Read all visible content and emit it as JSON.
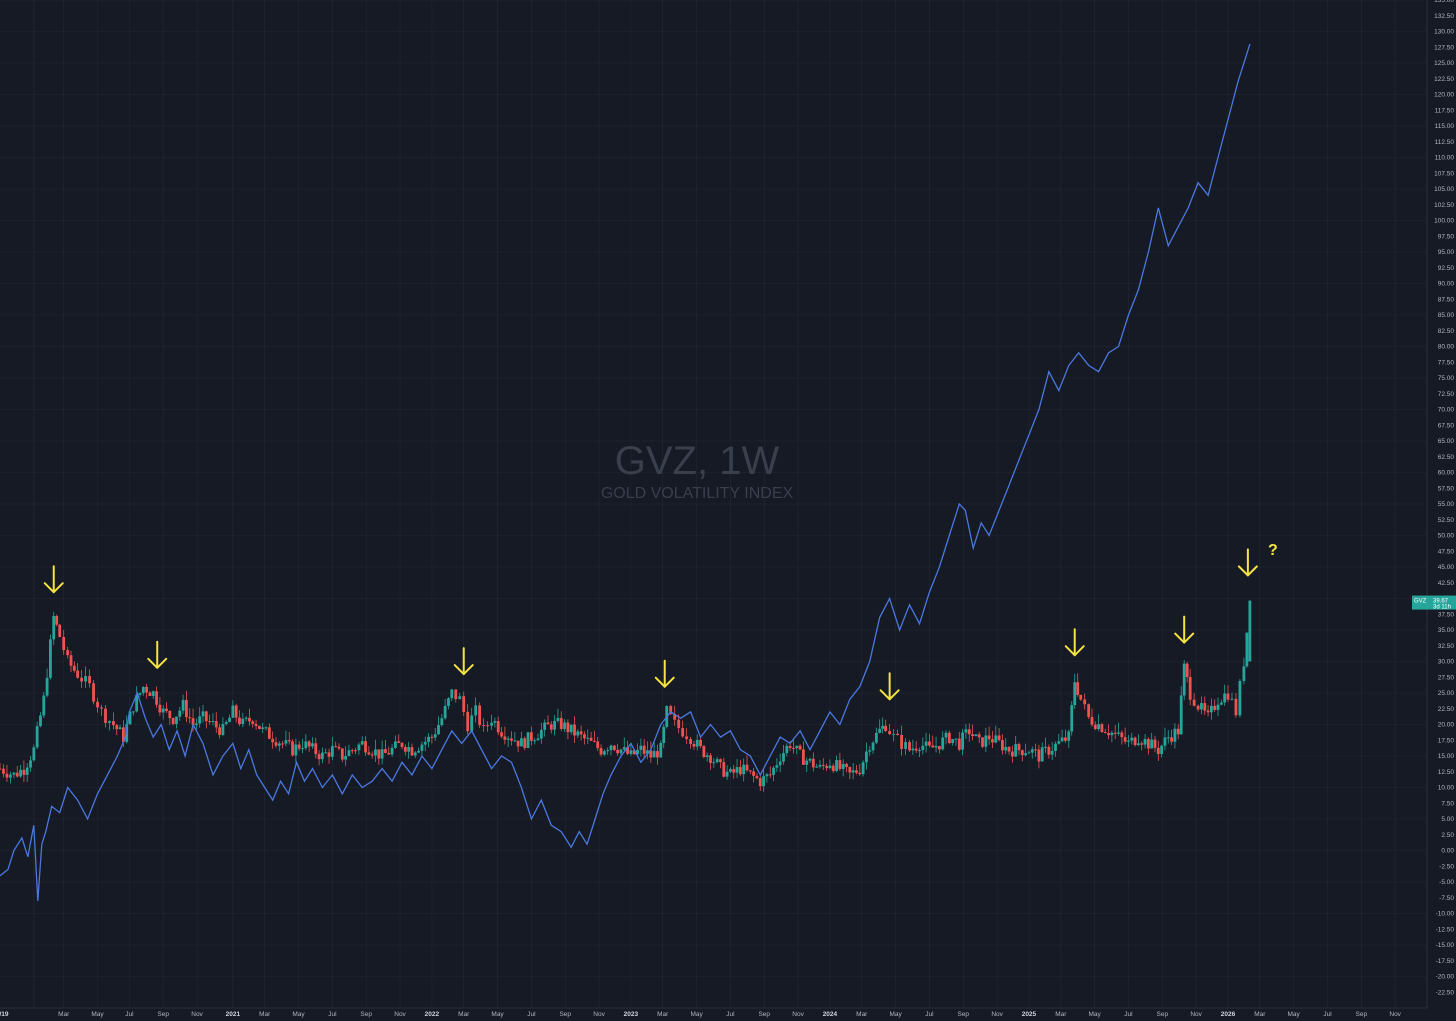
{
  "watermark": {
    "title": "GVZ, 1W",
    "subtitle": "GOLD VOLATILITY INDEX"
  },
  "price_tag": {
    "symbol": "GVZ",
    "value": "39.67",
    "countdown": "3d 11h"
  },
  "question_mark": "?",
  "colors": {
    "background": "#161a25",
    "grid": "#232734",
    "up": "#26a69a",
    "down": "#ef5350",
    "line": "#4a78e0",
    "arrow": "#f5e342"
  },
  "chart_data": {
    "type": "candlestick",
    "ylim": [
      -25,
      135
    ],
    "y_ticks": [
      "135.00",
      "132.50",
      "130.00",
      "127.50",
      "125.00",
      "122.50",
      "120.00",
      "117.50",
      "115.00",
      "112.50",
      "110.00",
      "107.50",
      "105.00",
      "102.50",
      "100.00",
      "97.50",
      "95.00",
      "92.50",
      "90.00",
      "87.50",
      "85.00",
      "82.50",
      "80.00",
      "77.50",
      "75.00",
      "72.50",
      "70.00",
      "67.50",
      "65.00",
      "62.50",
      "60.00",
      "57.50",
      "55.00",
      "52.50",
      "50.00",
      "47.50",
      "45.00",
      "42.50",
      "40.00",
      "37.50",
      "35.00",
      "32.50",
      "30.00",
      "27.50",
      "25.00",
      "22.50",
      "20.00",
      "17.50",
      "15.00",
      "12.50",
      "10.00",
      "7.50",
      "5.00",
      "2.50",
      "0.00",
      "-2.50",
      "-5.00",
      "-7.50",
      "-10.00",
      "-12.50",
      "-15.00",
      "-17.50",
      "-20.00",
      "-22.50"
    ],
    "x_ticks": [
      {
        "label": "/19",
        "pos": 0.0,
        "year": true
      },
      {
        "label": "Mar",
        "pos": 0.15
      },
      {
        "label": "May",
        "pos": 0.32
      },
      {
        "label": "Jul",
        "pos": 0.48
      },
      {
        "label": "Sep",
        "pos": 0.65
      },
      {
        "label": "Nov",
        "pos": 0.82
      },
      {
        "label": "2021",
        "pos": 1.0,
        "year": true
      },
      {
        "label": "Mar",
        "pos": 1.16
      },
      {
        "label": "May",
        "pos": 1.33
      },
      {
        "label": "Jul",
        "pos": 1.5
      },
      {
        "label": "Sep",
        "pos": 1.67
      },
      {
        "label": "Nov",
        "pos": 1.84
      },
      {
        "label": "2022",
        "pos": 2.0,
        "year": true
      },
      {
        "label": "Mar",
        "pos": 2.16
      },
      {
        "label": "May",
        "pos": 2.33
      },
      {
        "label": "Jul",
        "pos": 2.5
      },
      {
        "label": "Sep",
        "pos": 2.67
      },
      {
        "label": "Nov",
        "pos": 2.84
      },
      {
        "label": "2023",
        "pos": 3.0,
        "year": true
      },
      {
        "label": "Mar",
        "pos": 3.16
      },
      {
        "label": "May",
        "pos": 3.33
      },
      {
        "label": "Jul",
        "pos": 3.5
      },
      {
        "label": "Sep",
        "pos": 3.67
      },
      {
        "label": "Nov",
        "pos": 3.84
      },
      {
        "label": "2024",
        "pos": 4.0,
        "year": true
      },
      {
        "label": "Mar",
        "pos": 4.16
      },
      {
        "label": "May",
        "pos": 4.33
      },
      {
        "label": "Jul",
        "pos": 4.5
      },
      {
        "label": "Sep",
        "pos": 4.67
      },
      {
        "label": "Nov",
        "pos": 4.84
      },
      {
        "label": "2025",
        "pos": 5.0,
        "year": true
      },
      {
        "label": "Mar",
        "pos": 5.16
      },
      {
        "label": "May",
        "pos": 5.33
      },
      {
        "label": "Jul",
        "pos": 5.5
      },
      {
        "label": "Sep",
        "pos": 5.67
      },
      {
        "label": "Nov",
        "pos": 5.84
      },
      {
        "label": "2026",
        "pos": 6.0,
        "year": true
      },
      {
        "label": "Mar",
        "pos": 6.16
      },
      {
        "label": "May",
        "pos": 6.33
      },
      {
        "label": "Jul",
        "pos": 6.5
      },
      {
        "label": "Sep",
        "pos": 6.67
      },
      {
        "label": "Nov",
        "pos": 6.84
      }
    ],
    "x_range": [
      -0.17,
      7.0
    ],
    "gvz_closes": [
      {
        "t": -0.17,
        "v": 13
      },
      {
        "t": -0.1,
        "v": 12
      },
      {
        "t": -0.05,
        "v": 13
      },
      {
        "t": 0.0,
        "v": 16
      },
      {
        "t": 0.05,
        "v": 24
      },
      {
        "t": 0.1,
        "v": 37
      },
      {
        "t": 0.13,
        "v": 34
      },
      {
        "t": 0.17,
        "v": 30
      },
      {
        "t": 0.22,
        "v": 28
      },
      {
        "t": 0.28,
        "v": 26
      },
      {
        "t": 0.34,
        "v": 22
      },
      {
        "t": 0.4,
        "v": 20
      },
      {
        "t": 0.45,
        "v": 18
      },
      {
        "t": 0.5,
        "v": 23
      },
      {
        "t": 0.55,
        "v": 26
      },
      {
        "t": 0.6,
        "v": 25
      },
      {
        "t": 0.65,
        "v": 22
      },
      {
        "t": 0.7,
        "v": 21
      },
      {
        "t": 0.75,
        "v": 23
      },
      {
        "t": 0.8,
        "v": 20
      },
      {
        "t": 0.85,
        "v": 21
      },
      {
        "t": 0.9,
        "v": 20
      },
      {
        "t": 0.95,
        "v": 19
      },
      {
        "t": 1.0,
        "v": 22
      },
      {
        "t": 1.05,
        "v": 20
      },
      {
        "t": 1.1,
        "v": 21
      },
      {
        "t": 1.15,
        "v": 19
      },
      {
        "t": 1.2,
        "v": 18
      },
      {
        "t": 1.25,
        "v": 17
      },
      {
        "t": 1.3,
        "v": 16
      },
      {
        "t": 1.35,
        "v": 17
      },
      {
        "t": 1.4,
        "v": 16
      },
      {
        "t": 1.45,
        "v": 15
      },
      {
        "t": 1.5,
        "v": 16
      },
      {
        "t": 1.55,
        "v": 15
      },
      {
        "t": 1.6,
        "v": 16
      },
      {
        "t": 1.65,
        "v": 17
      },
      {
        "t": 1.7,
        "v": 16
      },
      {
        "t": 1.75,
        "v": 15
      },
      {
        "t": 1.8,
        "v": 16
      },
      {
        "t": 1.85,
        "v": 17
      },
      {
        "t": 1.9,
        "v": 16
      },
      {
        "t": 1.95,
        "v": 17
      },
      {
        "t": 2.0,
        "v": 18
      },
      {
        "t": 2.05,
        "v": 21
      },
      {
        "t": 2.1,
        "v": 25
      },
      {
        "t": 2.14,
        "v": 24
      },
      {
        "t": 2.18,
        "v": 20
      },
      {
        "t": 2.22,
        "v": 22
      },
      {
        "t": 2.26,
        "v": 19
      },
      {
        "t": 2.3,
        "v": 21
      },
      {
        "t": 2.35,
        "v": 19
      },
      {
        "t": 2.4,
        "v": 18
      },
      {
        "t": 2.45,
        "v": 17
      },
      {
        "t": 2.5,
        "v": 18
      },
      {
        "t": 2.55,
        "v": 19
      },
      {
        "t": 2.6,
        "v": 20
      },
      {
        "t": 2.65,
        "v": 20
      },
      {
        "t": 2.7,
        "v": 19
      },
      {
        "t": 2.75,
        "v": 18
      },
      {
        "t": 2.8,
        "v": 17
      },
      {
        "t": 2.85,
        "v": 16
      },
      {
        "t": 2.9,
        "v": 17
      },
      {
        "t": 2.95,
        "v": 16
      },
      {
        "t": 3.0,
        "v": 15
      },
      {
        "t": 3.05,
        "v": 16
      },
      {
        "t": 3.1,
        "v": 15
      },
      {
        "t": 3.15,
        "v": 16
      },
      {
        "t": 3.18,
        "v": 22
      },
      {
        "t": 3.22,
        "v": 20
      },
      {
        "t": 3.26,
        "v": 19
      },
      {
        "t": 3.3,
        "v": 18
      },
      {
        "t": 3.35,
        "v": 16
      },
      {
        "t": 3.4,
        "v": 15
      },
      {
        "t": 3.45,
        "v": 13
      },
      {
        "t": 3.5,
        "v": 12
      },
      {
        "t": 3.55,
        "v": 13
      },
      {
        "t": 3.6,
        "v": 12
      },
      {
        "t": 3.65,
        "v": 11
      },
      {
        "t": 3.7,
        "v": 12
      },
      {
        "t": 3.75,
        "v": 15
      },
      {
        "t": 3.8,
        "v": 17
      },
      {
        "t": 3.85,
        "v": 15
      },
      {
        "t": 3.9,
        "v": 14
      },
      {
        "t": 3.95,
        "v": 13
      },
      {
        "t": 4.0,
        "v": 14
      },
      {
        "t": 4.05,
        "v": 13
      },
      {
        "t": 4.1,
        "v": 12
      },
      {
        "t": 4.15,
        "v": 13
      },
      {
        "t": 4.2,
        "v": 17
      },
      {
        "t": 4.25,
        "v": 19
      },
      {
        "t": 4.28,
        "v": 20
      },
      {
        "t": 4.32,
        "v": 18
      },
      {
        "t": 4.36,
        "v": 17
      },
      {
        "t": 4.4,
        "v": 16
      },
      {
        "t": 4.45,
        "v": 17
      },
      {
        "t": 4.5,
        "v": 16
      },
      {
        "t": 4.55,
        "v": 17
      },
      {
        "t": 4.6,
        "v": 18
      },
      {
        "t": 4.65,
        "v": 17
      },
      {
        "t": 4.7,
        "v": 19
      },
      {
        "t": 4.75,
        "v": 17
      },
      {
        "t": 4.8,
        "v": 18
      },
      {
        "t": 4.85,
        "v": 17
      },
      {
        "t": 4.9,
        "v": 16
      },
      {
        "t": 4.95,
        "v": 16
      },
      {
        "t": 5.0,
        "v": 16
      },
      {
        "t": 5.05,
        "v": 15
      },
      {
        "t": 5.1,
        "v": 16
      },
      {
        "t": 5.15,
        "v": 17
      },
      {
        "t": 5.2,
        "v": 18
      },
      {
        "t": 5.23,
        "v": 27
      },
      {
        "t": 5.26,
        "v": 24
      },
      {
        "t": 5.3,
        "v": 21
      },
      {
        "t": 5.35,
        "v": 20
      },
      {
        "t": 5.4,
        "v": 19
      },
      {
        "t": 5.45,
        "v": 18
      },
      {
        "t": 5.5,
        "v": 17
      },
      {
        "t": 5.55,
        "v": 18
      },
      {
        "t": 5.6,
        "v": 17
      },
      {
        "t": 5.65,
        "v": 16
      },
      {
        "t": 5.7,
        "v": 18
      },
      {
        "t": 5.75,
        "v": 19
      },
      {
        "t": 5.78,
        "v": 29
      },
      {
        "t": 5.81,
        "v": 25
      },
      {
        "t": 5.85,
        "v": 23
      },
      {
        "t": 5.9,
        "v": 21
      },
      {
        "t": 5.95,
        "v": 24
      },
      {
        "t": 6.0,
        "v": 25
      },
      {
        "t": 6.04,
        "v": 22
      },
      {
        "t": 6.08,
        "v": 30
      },
      {
        "t": 6.11,
        "v": 39.67
      }
    ],
    "blue_line": [
      {
        "t": -0.17,
        "v": -4
      },
      {
        "t": -0.13,
        "v": -3
      },
      {
        "t": -0.1,
        "v": 0
      },
      {
        "t": -0.06,
        "v": 2
      },
      {
        "t": -0.03,
        "v": -1
      },
      {
        "t": 0.0,
        "v": 4
      },
      {
        "t": 0.02,
        "v": -8
      },
      {
        "t": 0.04,
        "v": 1
      },
      {
        "t": 0.06,
        "v": 3
      },
      {
        "t": 0.09,
        "v": 7
      },
      {
        "t": 0.13,
        "v": 6
      },
      {
        "t": 0.17,
        "v": 10
      },
      {
        "t": 0.22,
        "v": 8
      },
      {
        "t": 0.27,
        "v": 5
      },
      {
        "t": 0.32,
        "v": 9
      },
      {
        "t": 0.37,
        "v": 12
      },
      {
        "t": 0.42,
        "v": 15
      },
      {
        "t": 0.46,
        "v": 18
      },
      {
        "t": 0.48,
        "v": 22
      },
      {
        "t": 0.52,
        "v": 25
      },
      {
        "t": 0.56,
        "v": 21
      },
      {
        "t": 0.6,
        "v": 18
      },
      {
        "t": 0.64,
        "v": 20
      },
      {
        "t": 0.68,
        "v": 16
      },
      {
        "t": 0.72,
        "v": 19
      },
      {
        "t": 0.76,
        "v": 15
      },
      {
        "t": 0.8,
        "v": 20
      },
      {
        "t": 0.85,
        "v": 17
      },
      {
        "t": 0.9,
        "v": 12
      },
      {
        "t": 0.95,
        "v": 15
      },
      {
        "t": 1.0,
        "v": 17
      },
      {
        "t": 1.04,
        "v": 13
      },
      {
        "t": 1.08,
        "v": 16
      },
      {
        "t": 1.12,
        "v": 12
      },
      {
        "t": 1.16,
        "v": 10
      },
      {
        "t": 1.2,
        "v": 8
      },
      {
        "t": 1.24,
        "v": 11
      },
      {
        "t": 1.28,
        "v": 9
      },
      {
        "t": 1.32,
        "v": 14
      },
      {
        "t": 1.36,
        "v": 11
      },
      {
        "t": 1.4,
        "v": 13
      },
      {
        "t": 1.45,
        "v": 10
      },
      {
        "t": 1.5,
        "v": 12
      },
      {
        "t": 1.55,
        "v": 9
      },
      {
        "t": 1.6,
        "v": 12
      },
      {
        "t": 1.65,
        "v": 10
      },
      {
        "t": 1.7,
        "v": 11
      },
      {
        "t": 1.75,
        "v": 13
      },
      {
        "t": 1.8,
        "v": 11
      },
      {
        "t": 1.85,
        "v": 14
      },
      {
        "t": 1.9,
        "v": 12
      },
      {
        "t": 1.95,
        "v": 15
      },
      {
        "t": 2.0,
        "v": 13
      },
      {
        "t": 2.05,
        "v": 16
      },
      {
        "t": 2.1,
        "v": 19
      },
      {
        "t": 2.15,
        "v": 17
      },
      {
        "t": 2.2,
        "v": 19
      },
      {
        "t": 2.25,
        "v": 16
      },
      {
        "t": 2.3,
        "v": 13
      },
      {
        "t": 2.35,
        "v": 15
      },
      {
        "t": 2.4,
        "v": 14
      },
      {
        "t": 2.45,
        "v": 10
      },
      {
        "t": 2.5,
        "v": 5
      },
      {
        "t": 2.55,
        "v": 8
      },
      {
        "t": 2.6,
        "v": 4
      },
      {
        "t": 2.65,
        "v": 3
      },
      {
        "t": 2.7,
        "v": 0.5
      },
      {
        "t": 2.74,
        "v": 3
      },
      {
        "t": 2.78,
        "v": 1
      },
      {
        "t": 2.82,
        "v": 5
      },
      {
        "t": 2.86,
        "v": 9
      },
      {
        "t": 2.9,
        "v": 12
      },
      {
        "t": 2.95,
        "v": 15
      },
      {
        "t": 3.0,
        "v": 17
      },
      {
        "t": 3.05,
        "v": 14
      },
      {
        "t": 3.1,
        "v": 16
      },
      {
        "t": 3.15,
        "v": 20
      },
      {
        "t": 3.2,
        "v": 22
      },
      {
        "t": 3.25,
        "v": 21
      },
      {
        "t": 3.3,
        "v": 22
      },
      {
        "t": 3.35,
        "v": 18
      },
      {
        "t": 3.4,
        "v": 20
      },
      {
        "t": 3.45,
        "v": 18
      },
      {
        "t": 3.5,
        "v": 19
      },
      {
        "t": 3.55,
        "v": 16
      },
      {
        "t": 3.6,
        "v": 15
      },
      {
        "t": 3.65,
        "v": 12
      },
      {
        "t": 3.7,
        "v": 15
      },
      {
        "t": 3.75,
        "v": 18
      },
      {
        "t": 3.8,
        "v": 17
      },
      {
        "t": 3.85,
        "v": 19
      },
      {
        "t": 3.9,
        "v": 16
      },
      {
        "t": 3.95,
        "v": 19
      },
      {
        "t": 4.0,
        "v": 22
      },
      {
        "t": 4.05,
        "v": 20
      },
      {
        "t": 4.1,
        "v": 24
      },
      {
        "t": 4.15,
        "v": 26
      },
      {
        "t": 4.2,
        "v": 30
      },
      {
        "t": 4.25,
        "v": 37
      },
      {
        "t": 4.3,
        "v": 40
      },
      {
        "t": 4.35,
        "v": 35
      },
      {
        "t": 4.4,
        "v": 39
      },
      {
        "t": 4.45,
        "v": 36
      },
      {
        "t": 4.5,
        "v": 41
      },
      {
        "t": 4.55,
        "v": 45
      },
      {
        "t": 4.6,
        "v": 50
      },
      {
        "t": 4.65,
        "v": 55
      },
      {
        "t": 4.68,
        "v": 54
      },
      {
        "t": 4.72,
        "v": 48
      },
      {
        "t": 4.76,
        "v": 52
      },
      {
        "t": 4.8,
        "v": 50
      },
      {
        "t": 4.85,
        "v": 54
      },
      {
        "t": 4.9,
        "v": 58
      },
      {
        "t": 4.95,
        "v": 62
      },
      {
        "t": 5.0,
        "v": 66
      },
      {
        "t": 5.05,
        "v": 70
      },
      {
        "t": 5.1,
        "v": 76
      },
      {
        "t": 5.15,
        "v": 73
      },
      {
        "t": 5.2,
        "v": 77
      },
      {
        "t": 5.25,
        "v": 79
      },
      {
        "t": 5.3,
        "v": 77
      },
      {
        "t": 5.35,
        "v": 76
      },
      {
        "t": 5.4,
        "v": 79
      },
      {
        "t": 5.45,
        "v": 80
      },
      {
        "t": 5.5,
        "v": 85
      },
      {
        "t": 5.55,
        "v": 89
      },
      {
        "t": 5.6,
        "v": 95
      },
      {
        "t": 5.65,
        "v": 102
      },
      {
        "t": 5.7,
        "v": 96
      },
      {
        "t": 5.75,
        "v": 99
      },
      {
        "t": 5.8,
        "v": 102
      },
      {
        "t": 5.85,
        "v": 106
      },
      {
        "t": 5.9,
        "v": 104
      },
      {
        "t": 5.95,
        "v": 110
      },
      {
        "t": 6.0,
        "v": 116
      },
      {
        "t": 6.05,
        "v": 122
      },
      {
        "t": 6.11,
        "v": 128
      }
    ],
    "arrow_markers": [
      0.1,
      0.62,
      2.16,
      3.17,
      4.3,
      5.23,
      5.78,
      6.1
    ]
  }
}
